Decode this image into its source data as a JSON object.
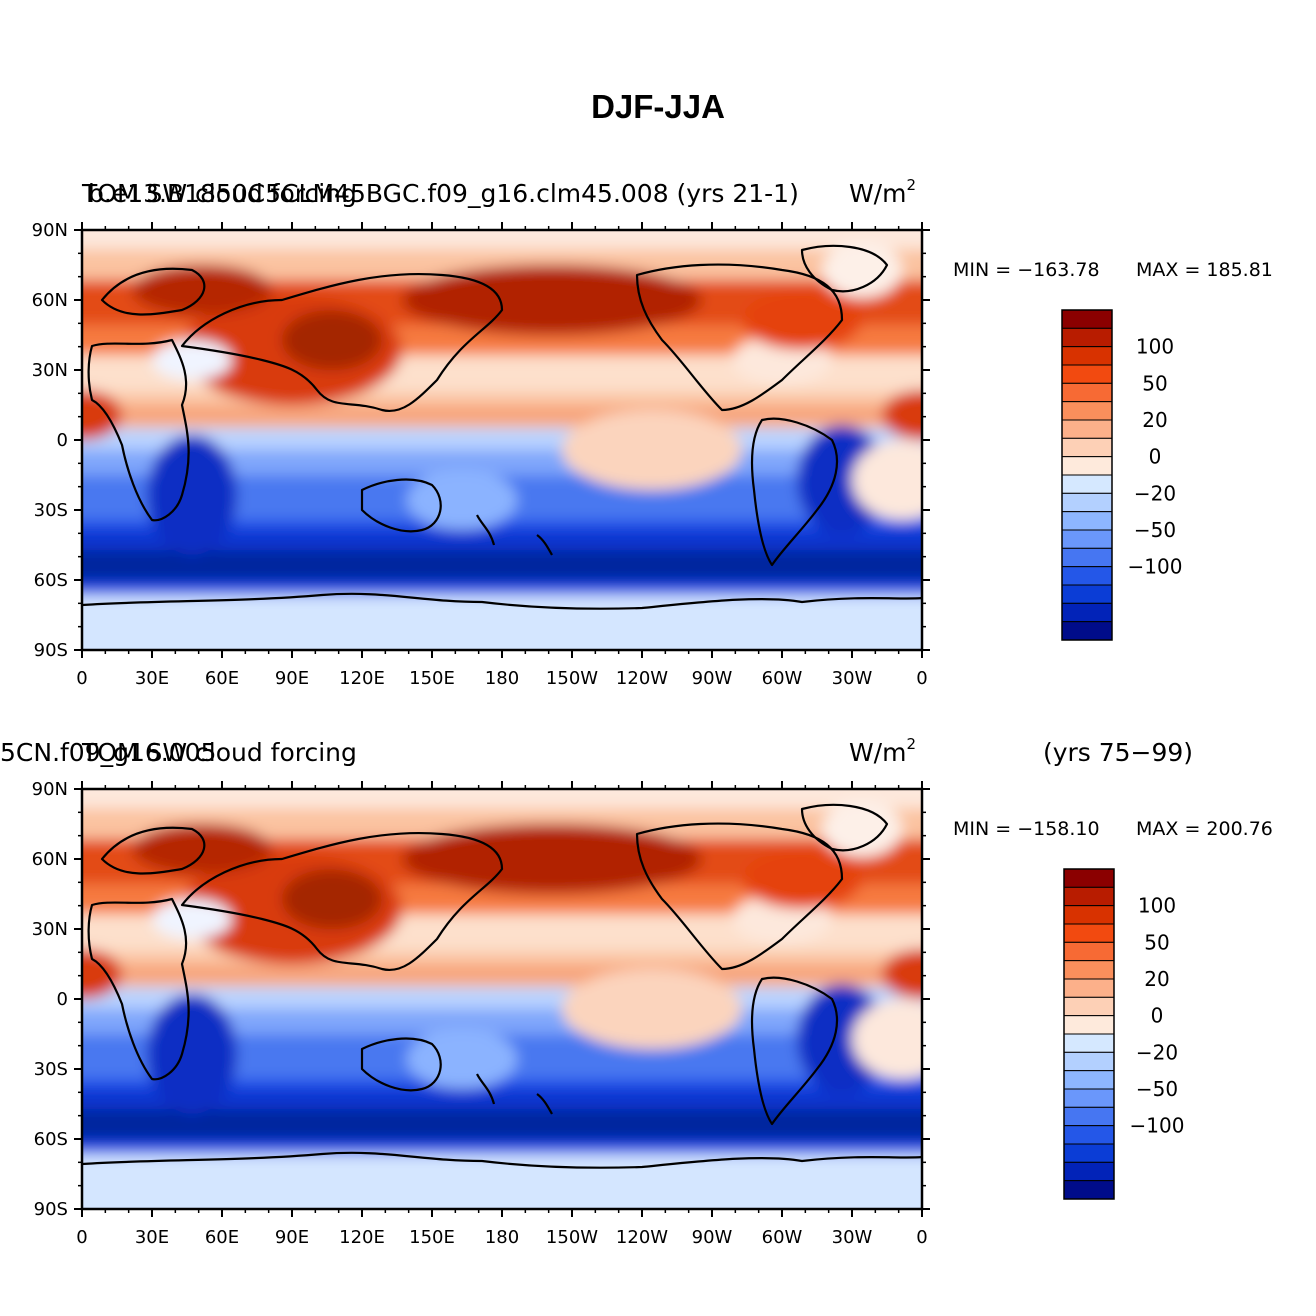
{
  "figure_title": "DJF-JJA",
  "chart_data": [
    {
      "type": "heatmap",
      "title": "TOM SW cloud forcing",
      "case_label": "b.e13.B1850C5CLM45BGC.f09_g16.clm45.008 (yrs 21-1)",
      "units": "W/m",
      "units_sup": "2",
      "period": "",
      "min_label": "MIN = −163.78",
      "max_label": "MAX = 185.81",
      "min": -163.78,
      "max": 185.81,
      "xticks": [
        "0",
        "30E",
        "60E",
        "90E",
        "120E",
        "150E",
        "180",
        "150W",
        "120W",
        "90W",
        "60W",
        "30W",
        "0"
      ],
      "yticks": [
        "90N",
        "60N",
        "30N",
        "0",
        "30S",
        "60S",
        "90S"
      ],
      "xlim": [
        0,
        360
      ],
      "ylim": [
        -90,
        90
      ]
    },
    {
      "type": "heatmap",
      "title": "TOM SW cloud forcing",
      "case_label": "5CN.f09_g16.005",
      "units": "W/m",
      "units_sup": "2",
      "period": "(yrs 75−99)",
      "min_label": "MIN = −158.10",
      "max_label": "MAX = 200.76",
      "min": -158.1,
      "max": 200.76,
      "xticks": [
        "0",
        "30E",
        "60E",
        "90E",
        "120E",
        "150E",
        "180",
        "150W",
        "120W",
        "90W",
        "60W",
        "30W",
        "0"
      ],
      "yticks": [
        "90N",
        "60N",
        "30N",
        "0",
        "30S",
        "60S",
        "90S"
      ],
      "xlim": [
        0,
        360
      ],
      "ylim": [
        -90,
        90
      ]
    }
  ],
  "colorbar": {
    "colors": [
      "#8b0000",
      "#b81c00",
      "#d83200",
      "#f24a10",
      "#f76a34",
      "#fa8f5c",
      "#fcb08a",
      "#fdd0b6",
      "#feeadc",
      "#d5e8ff",
      "#b3d0ff",
      "#8db6ff",
      "#6a97fb",
      "#4676f2",
      "#2457e8",
      "#0b3dd6",
      "#0223b8",
      "#000c8a"
    ],
    "labels": [
      "100",
      "50",
      "20",
      "0",
      "−20",
      "−50",
      "−100"
    ]
  }
}
